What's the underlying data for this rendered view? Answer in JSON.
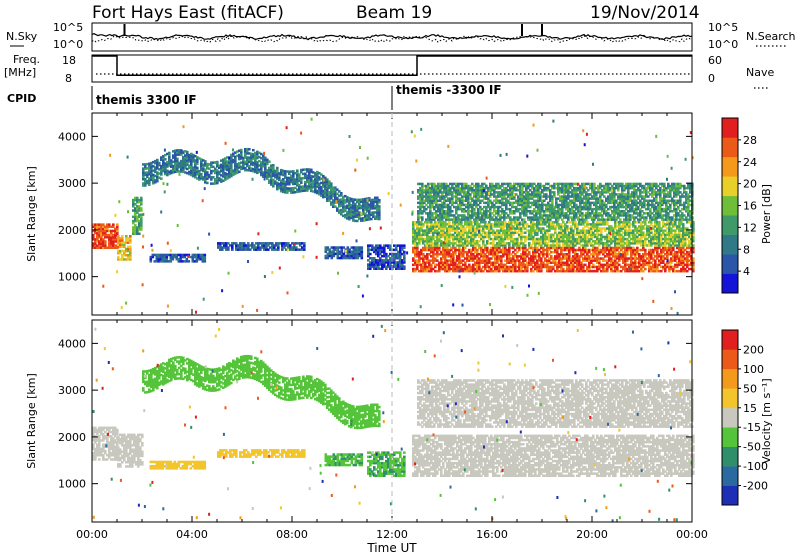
{
  "header": {
    "station": "Fort Hays East (fitACF)",
    "beam": "Beam 19",
    "date": "19/Nov/2014"
  },
  "summary_panels": {
    "noise": {
      "left_label": "N.Sky",
      "right_label": "N.Search",
      "left_ticks": [
        "10^5",
        "10^0"
      ],
      "right_ticks": [
        "10^5",
        "10^0"
      ]
    },
    "freq": {
      "left_label_1": "Freq.",
      "left_label_2": "[MHz]",
      "right_label": "Nave",
      "left_ticks": [
        "18",
        "8"
      ],
      "right_ticks": [
        "60",
        "0"
      ],
      "segments": [
        {
          "x0": 0.0,
          "x1": 1.0,
          "freq": 18
        },
        {
          "x0": 1.0,
          "x1": 13.0,
          "freq": 10
        },
        {
          "x0": 13.0,
          "x1": 24.0,
          "freq": 18
        }
      ]
    },
    "cpid": {
      "label": "CPID",
      "programs": [
        {
          "start": 0.0,
          "name": "themis 3300 IF"
        },
        {
          "start": 12.0,
          "name": "themis -3300 IF"
        }
      ]
    }
  },
  "power_colorbar": {
    "title": "Power [dB]",
    "ticks": [
      "4",
      "8",
      "12",
      "16",
      "20",
      "24",
      "28"
    ],
    "colors": [
      "#1414d8",
      "#2b55a8",
      "#2f7a86",
      "#3f9a6a",
      "#6fbe3a",
      "#e9cf2a",
      "#f39a1c",
      "#ec5a1a",
      "#e21f1f"
    ]
  },
  "velocity_colorbar": {
    "title": "Velocity [m s⁻¹]",
    "ticks": [
      "200",
      "100",
      "50",
      "15",
      "-15",
      "-50",
      "-100",
      "-200"
    ],
    "colors": [
      "#1c2fb5",
      "#2b6aa0",
      "#2f8f6a",
      "#55c43a",
      "#c8c8be",
      "#f3c52c",
      "#f39a1c",
      "#ec5a1a",
      "#e21f1f"
    ]
  },
  "axes": {
    "ylabel": "Slant Range [km]",
    "xlabel": "Time UT",
    "yticks": [
      "1000",
      "2000",
      "3000",
      "4000"
    ],
    "xticks": [
      "00:00",
      "04:00",
      "08:00",
      "12:00",
      "16:00",
      "20:00",
      "00:00"
    ]
  },
  "chart_data": [
    {
      "type": "heatmap",
      "title": "Power [dB]",
      "xlabel": "Time UT",
      "ylabel": "Slant Range [km]",
      "xlim": [
        0,
        24
      ],
      "ylim": [
        180,
        4500
      ],
      "clim": [
        0,
        30
      ],
      "regions": [
        {
          "kind": "band",
          "t0": 0.0,
          "t1": 1.0,
          "r_center": 1850,
          "r_halfwidth": 250,
          "value": 26
        },
        {
          "kind": "band",
          "t0": 1.0,
          "t1": 1.5,
          "r_center": 1600,
          "r_halfwidth": 250,
          "value": 20
        },
        {
          "kind": "band",
          "t0": 1.6,
          "t1": 2.0,
          "r_center": 2300,
          "r_halfwidth": 400,
          "value": 12
        },
        {
          "kind": "arc",
          "t0": 2.0,
          "t1": 11.5,
          "r_start": 3300,
          "r_peak": 3350,
          "r_end": 2300,
          "r_halfwidth": 230,
          "value": 8
        },
        {
          "kind": "band",
          "t0": 2.3,
          "t1": 4.5,
          "r_center": 1400,
          "r_halfwidth": 90,
          "value": 6
        },
        {
          "kind": "band",
          "t0": 5.0,
          "t1": 8.5,
          "r_center": 1650,
          "r_halfwidth": 90,
          "value": 6
        },
        {
          "kind": "band",
          "t0": 9.3,
          "t1": 10.8,
          "r_center": 1500,
          "r_halfwidth": 120,
          "value": 6
        },
        {
          "kind": "band",
          "t0": 11.0,
          "t1": 12.5,
          "r_center": 1400,
          "r_halfwidth": 250,
          "value": 5
        },
        {
          "kind": "band",
          "t0": 12.8,
          "t1": 24.0,
          "r_center": 1350,
          "r_halfwidth": 250,
          "value": 26
        },
        {
          "kind": "band",
          "t0": 12.8,
          "t1": 24.0,
          "r_center": 1900,
          "r_halfwidth": 250,
          "value": 15
        },
        {
          "kind": "band",
          "t0": 13.0,
          "t1": 24.0,
          "r_center": 2600,
          "r_halfwidth": 400,
          "value": 11
        }
      ]
    },
    {
      "type": "heatmap",
      "title": "Velocity [m s⁻¹]",
      "xlabel": "Time UT",
      "ylabel": "Slant Range [km]",
      "xlim": [
        0,
        24
      ],
      "ylim": [
        180,
        4500
      ],
      "clim": [
        -200,
        200
      ],
      "regions": [
        {
          "kind": "band",
          "t0": 0.0,
          "t1": 1.0,
          "r_center": 1850,
          "r_halfwidth": 350,
          "value": 0
        },
        {
          "kind": "band",
          "t0": 1.0,
          "t1": 2.0,
          "r_center": 1700,
          "r_halfwidth": 350,
          "value": 0
        },
        {
          "kind": "arc",
          "t0": 2.0,
          "t1": 11.5,
          "r_start": 3300,
          "r_peak": 3350,
          "r_end": 2300,
          "r_halfwidth": 230,
          "value": -40
        },
        {
          "kind": "band",
          "t0": 2.3,
          "t1": 4.5,
          "r_center": 1400,
          "r_halfwidth": 90,
          "value": 40
        },
        {
          "kind": "band",
          "t0": 5.0,
          "t1": 8.5,
          "r_center": 1650,
          "r_halfwidth": 90,
          "value": 45
        },
        {
          "kind": "band",
          "t0": 9.3,
          "t1": 10.8,
          "r_center": 1500,
          "r_halfwidth": 120,
          "value": -60
        },
        {
          "kind": "band",
          "t0": 11.0,
          "t1": 12.5,
          "r_center": 1400,
          "r_halfwidth": 250,
          "value": -60
        },
        {
          "kind": "band",
          "t0": 12.8,
          "t1": 24.0,
          "r_center": 1600,
          "r_halfwidth": 450,
          "value": 0
        },
        {
          "kind": "band",
          "t0": 13.0,
          "t1": 24.0,
          "r_center": 2700,
          "r_halfwidth": 500,
          "value": 0
        }
      ]
    }
  ]
}
